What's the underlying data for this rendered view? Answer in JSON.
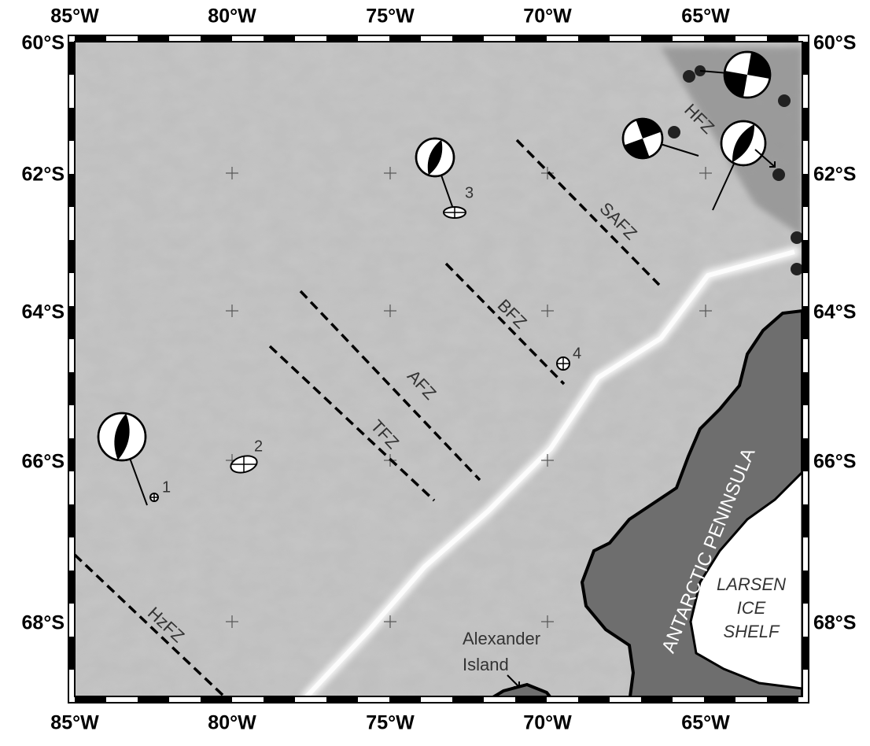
{
  "map": {
    "lon_labels": [
      "85°W",
      "80°W",
      "75°W",
      "70°W",
      "65°W"
    ],
    "lat_labels": [
      "60°S",
      "62°S",
      "64°S",
      "66°S",
      "68°S"
    ],
    "fracture_zones": [
      "HFZ",
      "SAFZ",
      "BFZ",
      "AFZ",
      "TFZ",
      "HzFZ"
    ],
    "events": [
      "1",
      "2",
      "3",
      "4"
    ],
    "places": {
      "peninsula": "ANTARCTIC PENINSULA",
      "island": [
        "Alexander",
        "Island"
      ],
      "shelf": [
        "LARSEN",
        "ICE",
        "SHELF"
      ]
    }
  }
}
